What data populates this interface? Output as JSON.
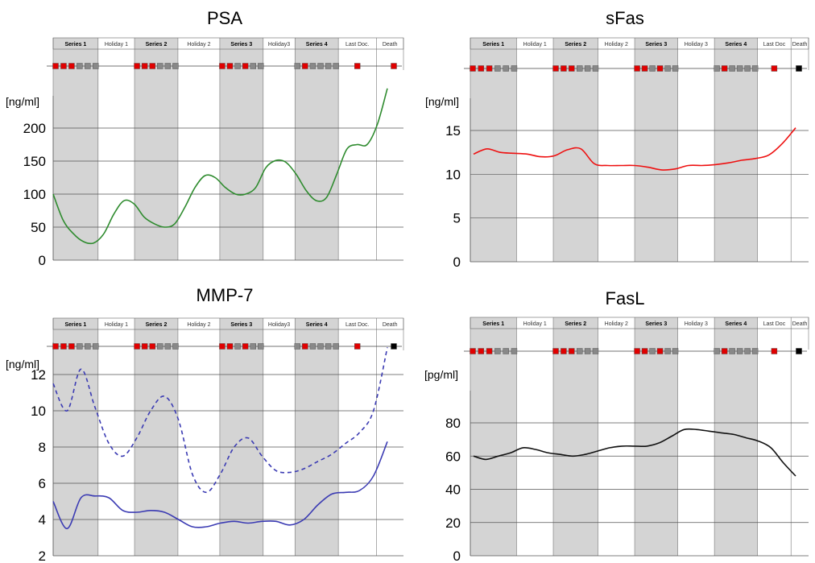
{
  "chart_data": [
    {
      "type": "line",
      "title": "PSA",
      "ylabel": "[ng/ml]",
      "ylim": [
        0,
        200
      ],
      "yticks": [
        0,
        50,
        100,
        150,
        200
      ],
      "phases": [
        "Series 1",
        "Holiday 1",
        "Series 2",
        "Holiday 2",
        "Series 3",
        "Holiday3",
        "Series 4",
        "Last Doc.",
        "Death"
      ],
      "markers": [
        "red",
        "red",
        "red",
        "gray",
        "gray",
        "gray",
        "red",
        "red",
        "red",
        "gray",
        "gray",
        "gray",
        "red",
        "red",
        "gray",
        "red",
        "gray",
        "gray",
        "gray",
        "red",
        "gray",
        "gray",
        "gray",
        "gray",
        "red",
        "red"
      ],
      "series": [
        {
          "color": "#2e8b2e",
          "dashed": false,
          "values": [
            100,
            60,
            40,
            28,
            26,
            40,
            70,
            90,
            85,
            65,
            55,
            50,
            55,
            80,
            110,
            128,
            125,
            110,
            100,
            100,
            110,
            140,
            151,
            148,
            130,
            105,
            90,
            95,
            130,
            168,
            175,
            175,
            205,
            260
          ]
        }
      ]
    },
    {
      "type": "line",
      "title": "sFas",
      "ylabel": "[ng/ml]",
      "ylim": [
        0,
        15
      ],
      "yticks": [
        0,
        5,
        10,
        15
      ],
      "phases": [
        "Series 1",
        "Holiday 1",
        "Series 2",
        "Holiday 2",
        "Series 3",
        "Holiday 3",
        "Series 4",
        "Last Doc",
        "Death"
      ],
      "markers": [
        "red",
        "red",
        "red",
        "gray",
        "gray",
        "gray",
        "red",
        "red",
        "red",
        "gray",
        "gray",
        "gray",
        "red",
        "red",
        "gray",
        "red",
        "gray",
        "gray",
        "gray",
        "red",
        "gray",
        "gray",
        "gray",
        "gray",
        "red",
        "red",
        "black"
      ],
      "series": [
        {
          "color": "#ee1111",
          "dashed": false,
          "values": [
            12.3,
            12.9,
            12.5,
            12.4,
            12.3,
            12.0,
            12.1,
            12.8,
            12.9,
            11.2,
            11.0,
            11.0,
            11.0,
            10.8,
            10.5,
            10.6,
            11.0,
            11.0,
            11.1,
            11.3,
            11.6,
            11.8,
            12.2,
            13.5,
            15.3
          ]
        }
      ]
    },
    {
      "type": "line",
      "title": "MMP-7",
      "ylabel": "[ng/ml]",
      "ylim": [
        2,
        13.5
      ],
      "yticks": [
        2,
        4,
        6,
        8,
        10,
        12
      ],
      "phases": [
        "Series 1",
        "Holiday 1",
        "Series 2",
        "Holiday 2",
        "Series 3",
        "Holiday3",
        "Series 4",
        "Last Doc.",
        "Death"
      ],
      "markers": [
        "red",
        "red",
        "red",
        "gray",
        "gray",
        "gray",
        "red",
        "red",
        "red",
        "gray",
        "gray",
        "gray",
        "red",
        "red",
        "gray",
        "red",
        "gray",
        "gray",
        "gray",
        "red",
        "gray",
        "gray",
        "gray",
        "gray",
        "red",
        "black"
      ],
      "series": [
        {
          "color": "#3b3bb3",
          "dashed": true,
          "values": [
            11.5,
            10.0,
            12.3,
            10.2,
            8.2,
            7.5,
            8.5,
            10.0,
            10.8,
            9.5,
            6.5,
            5.5,
            6.5,
            8.0,
            8.5,
            7.5,
            6.7,
            6.6,
            6.8,
            7.2,
            7.6,
            8.2,
            8.8,
            10.0,
            13.5
          ]
        },
        {
          "color": "#3b3bb3",
          "dashed": false,
          "values": [
            5.0,
            3.5,
            5.2,
            5.3,
            5.2,
            4.5,
            4.4,
            4.5,
            4.4,
            4.0,
            3.6,
            3.6,
            3.8,
            3.9,
            3.8,
            3.9,
            3.9,
            3.7,
            4.0,
            4.8,
            5.4,
            5.5,
            5.6,
            6.4,
            8.3
          ]
        }
      ]
    },
    {
      "type": "line",
      "title": "FasL",
      "ylabel": "[pg/ml]",
      "ylim": [
        0,
        80
      ],
      "yticks": [
        0,
        20,
        40,
        60,
        80
      ],
      "phases": [
        "Series 1",
        "Holiday 1",
        "Series 2",
        "Holiday 2",
        "Series 3",
        "Holiday 3",
        "Series 4",
        "Last Doc",
        "Death"
      ],
      "markers": [
        "red",
        "red",
        "red",
        "gray",
        "gray",
        "gray",
        "red",
        "red",
        "red",
        "gray",
        "gray",
        "gray",
        "red",
        "red",
        "gray",
        "red",
        "gray",
        "gray",
        "gray",
        "red",
        "gray",
        "gray",
        "gray",
        "gray",
        "red",
        "red",
        "black"
      ],
      "series": [
        {
          "color": "#111111",
          "dashed": false,
          "values": [
            60,
            58,
            60,
            62,
            65,
            64,
            62,
            61,
            60,
            61,
            63,
            65,
            66,
            66,
            66,
            68,
            72,
            76,
            76,
            75,
            74,
            73,
            71,
            69,
            65,
            56,
            48
          ]
        }
      ]
    }
  ]
}
